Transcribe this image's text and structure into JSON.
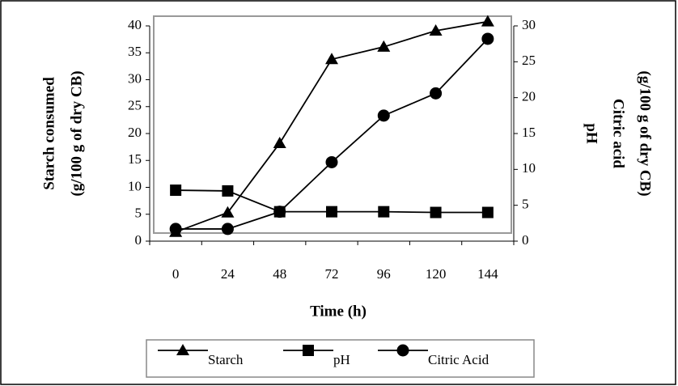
{
  "chart_data": {
    "type": "line",
    "x_label": "Time (h)",
    "y_label": [
      "Starch consumed",
      "(g/100 g of dry CB)"
    ],
    "y2_label": [
      "pH",
      "Citric acid",
      "(g/100 g of dry CB)"
    ],
    "categories": [
      "0",
      "24",
      "48",
      "72",
      "96",
      "120",
      "144"
    ],
    "ylim": [
      0,
      40
    ],
    "yticks": [
      0,
      5,
      10,
      15,
      20,
      25,
      30,
      35,
      40
    ],
    "y2lim": [
      0,
      30
    ],
    "y2ticks": [
      0,
      5,
      10,
      15,
      20,
      25,
      30
    ],
    "legend": "bottom",
    "series": [
      {
        "name": "Starch",
        "color": "#000000",
        "marker": "triangle",
        "values": [
          1.7,
          5.3,
          18.2,
          33.8,
          36.1,
          39.1,
          40.8
        ]
      },
      {
        "name": "pH",
        "color": "#000000",
        "marker": "square",
        "axis": "y2",
        "values": [
          7.1,
          7.0,
          4.1,
          4.1,
          4.1,
          4.0,
          4.0
        ]
      },
      {
        "name": "Citric Acid",
        "color": "#000000",
        "marker": "circle",
        "axis": "y2",
        "values": [
          1.7,
          1.7,
          4.1,
          11.0,
          17.5,
          20.6,
          28.2
        ]
      }
    ]
  }
}
